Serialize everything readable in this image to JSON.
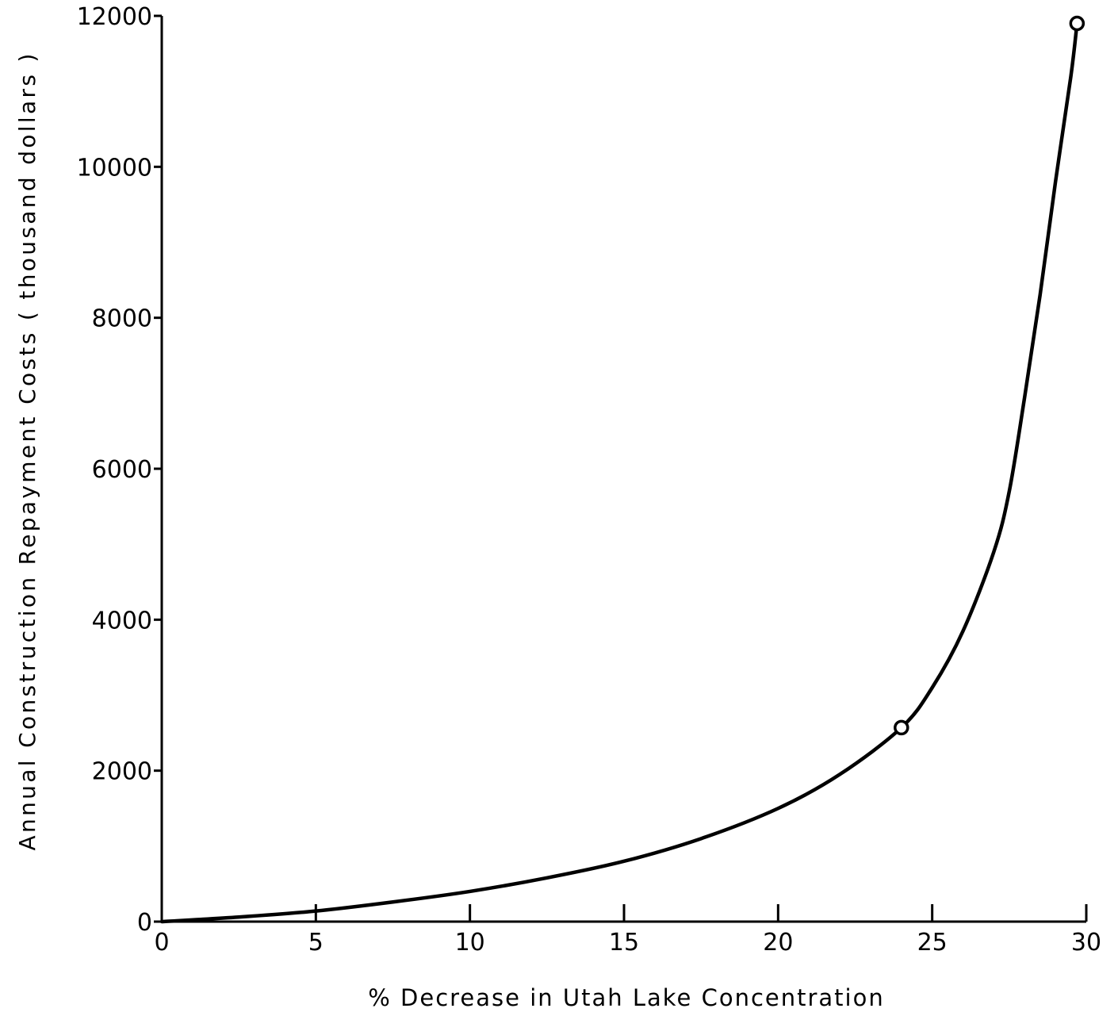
{
  "chart_data": {
    "type": "line",
    "title": "",
    "xlabel": "% Decrease in Utah Lake Concentration",
    "ylabel": "Annual Construction Repayment Costs ( thousand dollars )",
    "xlim": [
      0,
      30
    ],
    "ylim": [
      0,
      12000
    ],
    "x_ticks": [
      0,
      5,
      10,
      15,
      20,
      25,
      30
    ],
    "y_ticks": [
      0,
      2000,
      4000,
      6000,
      8000,
      10000,
      12000
    ],
    "x_tick_labels": [
      "0",
      "5",
      "10",
      "15",
      "20",
      "25",
      "30"
    ],
    "y_tick_labels": [
      "0",
      "2000",
      "4000",
      "6000",
      "8000",
      "10000",
      "12000"
    ],
    "grid": false,
    "legend": "none",
    "line_color": "#000000",
    "series": [
      {
        "x": [
          0,
          2.5,
          5,
          7.5,
          10,
          12.5,
          15,
          17.5,
          20,
          22,
          24,
          25,
          26,
          27,
          27.5,
          28,
          28.5,
          29,
          29.5,
          29.7
        ],
        "y": [
          0,
          60,
          140,
          260,
          400,
          580,
          800,
          1100,
          1500,
          1950,
          2570,
          3100,
          3850,
          4900,
          5700,
          6950,
          8300,
          9800,
          11200,
          11900
        ]
      }
    ],
    "markers": [
      {
        "x": 24,
        "y": 2570
      },
      {
        "x": 29.7,
        "y": 11900
      }
    ]
  }
}
